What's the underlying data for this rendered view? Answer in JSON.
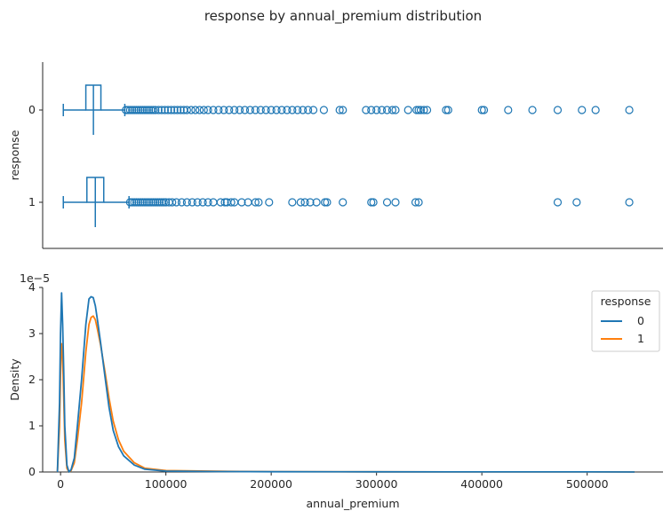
{
  "figure_title": "response by annual_premium distribution",
  "colors": {
    "response_0": "#1f77b4",
    "response_1": "#ff7f0e",
    "axis": "#262626"
  },
  "chart_data": [
    {
      "type": "box",
      "title": "",
      "xlabel": "",
      "ylabel": "response",
      "orientation": "horizontal",
      "xlim": [
        -17000,
        572000
      ],
      "categories": [
        "0",
        "1"
      ],
      "series": [
        {
          "category": "0",
          "whisker_low": 2630,
          "q1": 24000,
          "median": 31200,
          "q3": 38300,
          "whisker_high": 61000,
          "outliers": [
            62000,
            64000,
            66000,
            68000,
            70000,
            72000,
            74000,
            76000,
            78000,
            80000,
            82000,
            84000,
            86000,
            88000,
            90000,
            93000,
            96000,
            99000,
            102000,
            105000,
            108000,
            111000,
            114000,
            117000,
            120000,
            124000,
            128000,
            132000,
            136000,
            140000,
            145000,
            150000,
            155000,
            160000,
            165000,
            170000,
            175000,
            180000,
            185000,
            190000,
            195000,
            200000,
            205000,
            210000,
            215000,
            220000,
            225000,
            230000,
            235000,
            240000,
            250000,
            265000,
            268000,
            290000,
            295000,
            300000,
            305000,
            310000,
            315000,
            318000,
            330000,
            338000,
            340000,
            342000,
            345000,
            348000,
            366000,
            368000,
            400000,
            402000,
            425000,
            448000,
            472000,
            495000,
            508000,
            540000
          ]
        },
        {
          "category": "1",
          "whisker_low": 2630,
          "q1": 25000,
          "median": 33000,
          "q3": 41000,
          "whisker_high": 65000,
          "outliers": [
            66000,
            68000,
            70000,
            72000,
            74000,
            76000,
            78000,
            80000,
            82000,
            84000,
            86000,
            88000,
            90000,
            92000,
            94000,
            96000,
            98000,
            100000,
            103000,
            106000,
            110000,
            115000,
            120000,
            125000,
            130000,
            135000,
            140000,
            145000,
            152000,
            156000,
            158000,
            162000,
            165000,
            172000,
            178000,
            185000,
            188000,
            198000,
            220000,
            228000,
            232000,
            237000,
            243000,
            251000,
            253000,
            268000,
            295000,
            297000,
            310000,
            318000,
            337000,
            340000,
            472000,
            490000,
            540000
          ]
        }
      ]
    },
    {
      "type": "line",
      "title": "",
      "xlabel": "annual_premium",
      "ylabel": "Density",
      "y_scale_label": "1e−5",
      "xlim": [
        -17000,
        572000
      ],
      "ylim": [
        0,
        4
      ],
      "xticks": [
        "0",
        "100000",
        "200000",
        "300000",
        "400000",
        "500000"
      ],
      "xtick_values": [
        0,
        100000,
        200000,
        300000,
        400000,
        500000
      ],
      "yticks": [
        "0",
        "1",
        "2",
        "3",
        "4"
      ],
      "ytick_values": [
        0,
        1,
        2,
        3,
        4
      ],
      "legend": {
        "title": "response",
        "position": "top-right"
      },
      "series": [
        {
          "name": "0",
          "x": [
            -3000,
            -1000,
            0,
            1000,
            2000,
            3000,
            4000,
            6000,
            8000,
            10000,
            13000,
            16000,
            20000,
            24000,
            27000,
            29000,
            31000,
            33000,
            35000,
            38000,
            42000,
            46000,
            50000,
            55000,
            60000,
            70000,
            80000,
            100000,
            150000,
            200000,
            300000,
            400000,
            500000,
            545000
          ],
          "y": [
            0.0,
            1.5,
            3.0,
            3.88,
            3.2,
            2.2,
            1.0,
            0.15,
            0.0,
            0.05,
            0.3,
            1.0,
            2.0,
            3.2,
            3.75,
            3.8,
            3.78,
            3.6,
            3.3,
            2.8,
            2.1,
            1.4,
            0.9,
            0.55,
            0.35,
            0.15,
            0.06,
            0.02,
            0.01,
            0.005,
            0.003,
            0.002,
            0.001,
            0.0
          ]
        },
        {
          "name": "1",
          "x": [
            -3000,
            -1000,
            0,
            1000,
            2000,
            3000,
            4000,
            6000,
            8000,
            10000,
            13000,
            16000,
            20000,
            24000,
            27000,
            29000,
            31000,
            33000,
            35000,
            38000,
            42000,
            46000,
            50000,
            55000,
            60000,
            70000,
            80000,
            100000,
            150000,
            200000,
            300000,
            400000,
            500000,
            545000
          ],
          "y": [
            0.0,
            1.0,
            2.1,
            2.78,
            2.5,
            1.6,
            0.7,
            0.08,
            0.0,
            0.03,
            0.2,
            0.7,
            1.5,
            2.6,
            3.2,
            3.35,
            3.38,
            3.3,
            3.1,
            2.75,
            2.2,
            1.6,
            1.1,
            0.7,
            0.45,
            0.2,
            0.08,
            0.03,
            0.015,
            0.008,
            0.004,
            0.002,
            0.001,
            0.0
          ]
        }
      ]
    }
  ]
}
